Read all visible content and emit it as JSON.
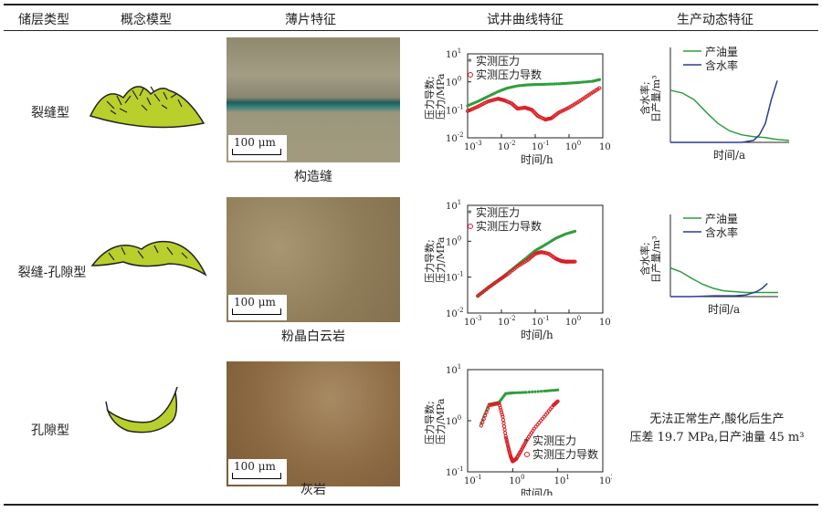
{
  "headers": {
    "reservoir_type": "储层类型",
    "concept_model": "概念模型",
    "thin_section": "薄片特征",
    "well_test": "试井曲线特征",
    "production": "生产动态特征"
  },
  "rows": [
    {
      "type": "裂缝型",
      "rock": "构造缝",
      "scale": "100 μm"
    },
    {
      "type": "裂缝-孔隙型",
      "rock": "粉晶白云岩",
      "scale": "100 μm"
    },
    {
      "type": "孔隙型",
      "rock": "灰岩",
      "scale": "100 μm"
    }
  ],
  "well_test_text": {
    "ylabel_line1": "压力导数;",
    "ylabel_line2": "压力/MPa",
    "xlabel": "时间/h",
    "legend_pressure": "实测压力",
    "legend_derivative": "实测压力导数"
  },
  "production_text": {
    "ylabel_line1": "含水率;",
    "ylabel_line2": "日产量/m³",
    "xlabel": "时间/a",
    "legend_oil": "产油量",
    "legend_water": "含水率"
  },
  "note_line1": "无法正常生产,酸化后生产",
  "note_line2": "压差 19.7 MPa,日产油量 45 m³",
  "colors": {
    "pressure": "#2e9e3e",
    "derivative": "#d81e24",
    "oil": "#2e9e3e",
    "water": "#2c3e91",
    "model_fill": "#b9cf2c"
  },
  "chart_data": [
    {
      "type": "scatter",
      "title": "",
      "xlabel": "时间/h",
      "ylabel": "压力导数;压力/MPa",
      "x_scale": "log",
      "y_scale": "log",
      "xlim": [
        0.001,
        10
      ],
      "ylim": [
        0.01,
        10
      ],
      "series": [
        {
          "name": "实测压力",
          "x": [
            0.001,
            0.002,
            0.004,
            0.008,
            0.015,
            0.03,
            0.06,
            0.1,
            0.2,
            0.5,
            1,
            2,
            5,
            8
          ],
          "y": [
            0.14,
            0.2,
            0.3,
            0.45,
            0.6,
            0.72,
            0.78,
            0.8,
            0.82,
            0.85,
            0.9,
            0.95,
            1.05,
            1.2
          ]
        },
        {
          "name": "实测压力导数",
          "x": [
            0.001,
            0.002,
            0.004,
            0.008,
            0.012,
            0.02,
            0.03,
            0.05,
            0.08,
            0.12,
            0.2,
            0.3,
            0.5,
            1,
            2,
            4,
            8
          ],
          "y": [
            0.09,
            0.13,
            0.2,
            0.25,
            0.22,
            0.17,
            0.11,
            0.12,
            0.1,
            0.06,
            0.045,
            0.05,
            0.08,
            0.12,
            0.2,
            0.35,
            0.6
          ]
        }
      ]
    },
    {
      "type": "scatter",
      "title": "",
      "xlabel": "时间/h",
      "ylabel": "压力导数;压力/MPa",
      "x_scale": "log",
      "y_scale": "log",
      "xlim": [
        0.001,
        10
      ],
      "ylim": [
        0.01,
        10
      ],
      "series": [
        {
          "name": "实测压力",
          "x": [
            0.002,
            0.004,
            0.008,
            0.015,
            0.03,
            0.06,
            0.1,
            0.2,
            0.4,
            0.8,
            1.5
          ],
          "y": [
            0.03,
            0.05,
            0.08,
            0.13,
            0.22,
            0.37,
            0.55,
            0.8,
            1.2,
            1.6,
            1.9
          ]
        },
        {
          "name": "实测压力导数",
          "x": [
            0.002,
            0.004,
            0.008,
            0.015,
            0.03,
            0.06,
            0.1,
            0.15,
            0.25,
            0.4,
            0.6,
            0.8,
            1,
            1.5
          ],
          "y": [
            0.03,
            0.05,
            0.08,
            0.12,
            0.2,
            0.3,
            0.45,
            0.5,
            0.45,
            0.33,
            0.28,
            0.27,
            0.27,
            0.27
          ]
        }
      ]
    },
    {
      "type": "scatter",
      "title": "",
      "xlabel": "时间/h",
      "ylabel": "压力导数;压力/MPa",
      "x_scale": "log",
      "y_scale": "log",
      "xlim": [
        0.1,
        100
      ],
      "ylim": [
        0.1,
        10
      ],
      "series": [
        {
          "name": "实测压力",
          "x": [
            0.2,
            0.3,
            0.5,
            0.7,
            1,
            2,
            5,
            10
          ],
          "y": [
            0.9,
            2.1,
            2.3,
            3.4,
            3.5,
            3.6,
            3.8,
            4.0
          ]
        },
        {
          "name": "实测压力导数",
          "x": [
            0.2,
            0.3,
            0.5,
            0.6,
            0.7,
            0.8,
            0.9,
            1,
            1.2,
            1.5,
            2,
            3,
            5,
            8,
            10
          ],
          "y": [
            0.8,
            2.0,
            2.2,
            1.2,
            0.5,
            0.3,
            0.2,
            0.16,
            0.18,
            0.25,
            0.4,
            0.7,
            1.2,
            2.0,
            2.4
          ]
        }
      ]
    },
    {
      "type": "line",
      "title": "",
      "xlabel": "时间/a",
      "ylabel": "含水率;日产量/m³",
      "series": [
        {
          "name": "产油量",
          "x": [
            0,
            0.1,
            0.2,
            0.3,
            0.4,
            0.5,
            0.6,
            0.7,
            0.8,
            0.9,
            1
          ],
          "y": [
            0.55,
            0.52,
            0.45,
            0.32,
            0.2,
            0.12,
            0.08,
            0.06,
            0.05,
            0.03,
            0.02
          ]
        },
        {
          "name": "含水率",
          "x": [
            0,
            0.2,
            0.4,
            0.5,
            0.6,
            0.7,
            0.75,
            0.8,
            0.85,
            0.9
          ],
          "y": [
            0,
            0,
            0,
            0,
            0,
            0.02,
            0.08,
            0.2,
            0.45,
            0.65
          ]
        }
      ]
    },
    {
      "type": "line",
      "title": "",
      "xlabel": "时间/a",
      "ylabel": "含水率;日产量/m³",
      "series": [
        {
          "name": "产油量",
          "x": [
            0,
            0.1,
            0.2,
            0.3,
            0.4,
            0.5,
            0.6,
            0.7,
            0.8,
            0.9,
            1
          ],
          "y": [
            0.35,
            0.3,
            0.22,
            0.15,
            0.1,
            0.07,
            0.06,
            0.05,
            0.05,
            0.05,
            0.05
          ]
        },
        {
          "name": "含水率",
          "x": [
            0,
            0.2,
            0.4,
            0.5,
            0.6,
            0.7,
            0.8,
            0.85,
            0.9
          ],
          "y": [
            0,
            0,
            0.01,
            0.01,
            0.01,
            0.02,
            0.06,
            0.1,
            0.16
          ]
        }
      ]
    }
  ]
}
